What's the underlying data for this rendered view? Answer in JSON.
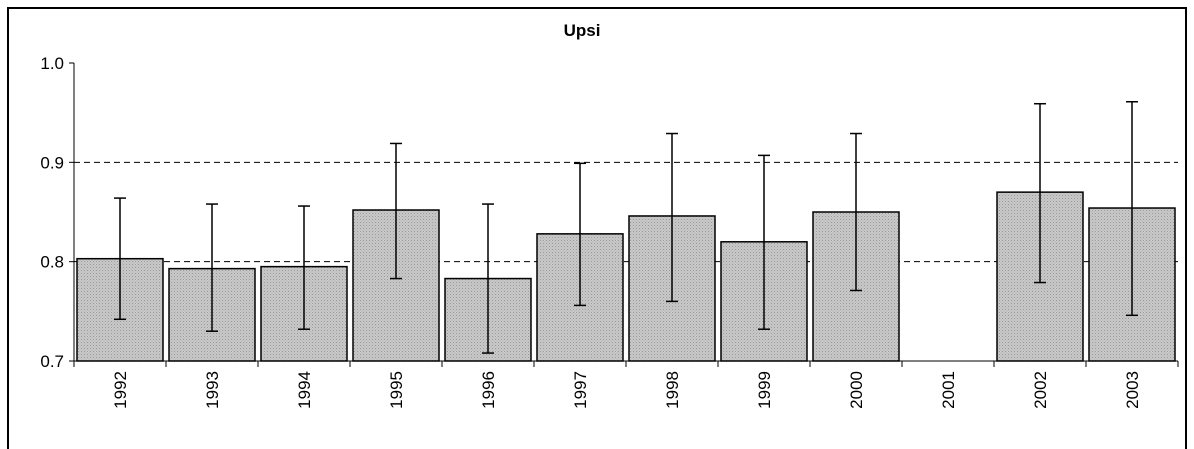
{
  "chart_data": {
    "type": "bar",
    "title": "Upsi",
    "xlabel": "",
    "ylabel": "",
    "ylim": [
      0.7,
      1.0
    ],
    "yticks": [
      0.7,
      0.8,
      0.9,
      1.0
    ],
    "ytick_labels": [
      "0.7",
      "0.8",
      "0.9",
      "1.0"
    ],
    "grid": "horizontal dashed at 0.8 and 0.9",
    "bar_color": "#c8c8c8",
    "categories": [
      "1992",
      "1993",
      "1994",
      "1995",
      "1996",
      "1997",
      "1998",
      "1999",
      "2000",
      "2001",
      "2002",
      "2003"
    ],
    "values": [
      0.803,
      0.793,
      0.795,
      0.852,
      0.783,
      0.828,
      0.846,
      0.82,
      0.85,
      null,
      0.87,
      0.854
    ],
    "error_low": [
      0.742,
      0.73,
      0.732,
      0.783,
      0.708,
      0.756,
      0.76,
      0.732,
      0.771,
      null,
      0.779,
      0.746
    ],
    "error_high": [
      0.864,
      0.858,
      0.856,
      0.919,
      0.858,
      0.899,
      0.929,
      0.907,
      0.929,
      null,
      0.959,
      0.961
    ]
  }
}
